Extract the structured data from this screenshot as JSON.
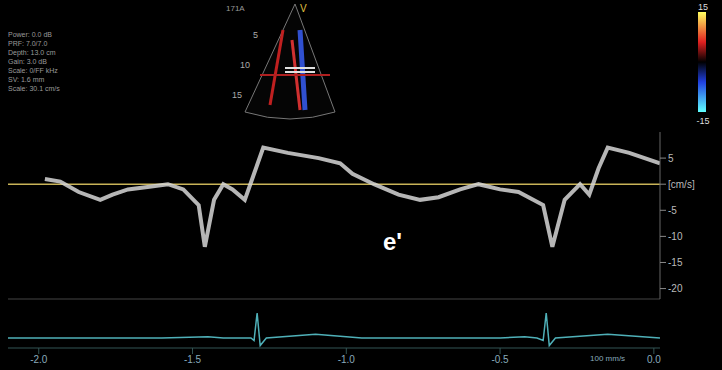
{
  "chart_data": [
    {
      "type": "line",
      "title": "171A",
      "info_text": [
        "Power: 0.0 dB",
        "PRF: 7.0/7.0",
        "Depth: 13.0 cm",
        "Gain: 3.0 dB",
        "Scale: 0/FF kHz",
        "SV: 1.6 mm",
        "Scale: 30.1 cm/s"
      ],
      "x": [
        -1.98,
        -1.93,
        -1.87,
        -1.8,
        -1.76,
        -1.71,
        -1.64,
        -1.58,
        -1.53,
        -1.48,
        -1.46,
        -1.43,
        -1.4,
        -1.37,
        -1.33,
        -1.3,
        -1.27,
        -1.19,
        -1.09,
        -1.02,
        -0.98,
        -0.91,
        -0.83,
        -0.76,
        -0.7,
        -0.63,
        -0.57,
        -0.5,
        -0.44,
        -0.36,
        -0.33,
        -0.29,
        -0.24,
        -0.21,
        -0.18,
        -0.15,
        -0.08,
        0.02
      ],
      "values": [
        1,
        0.5,
        -1.5,
        -3,
        -2,
        -1,
        -0.5,
        0,
        -1,
        -4,
        -12,
        -3,
        0,
        -1,
        -3,
        2,
        7,
        6,
        5,
        4,
        2,
        0,
        -2,
        -3,
        -2.5,
        -1,
        0,
        -1,
        -1.5,
        -4,
        -12,
        -3,
        0,
        -2,
        3,
        7,
        6,
        4
      ],
      "color": "#d6d6d6",
      "xlim": [
        -2.1,
        0.02
      ],
      "ylim": [
        -22,
        10
      ],
      "yticks": [
        5,
        {
          "value": 0,
          "label": "[cm/s]"
        },
        -5,
        -10,
        -15,
        -20
      ],
      "annotations": [
        {
          "text": "e'",
          "x": -0.85,
          "y": -11
        }
      ],
      "sector": {
        "depth_ticks": [
          5,
          10,
          15
        ],
        "label": "V"
      },
      "colorbar": {
        "ticks": [
          15,
          -15
        ]
      }
    },
    {
      "type": "line",
      "subtitle": "100 mm/s",
      "x": [
        -2.1,
        -1.6,
        -1.45,
        -1.4,
        -1.31,
        -1.3,
        -1.29,
        -1.28,
        -1.26,
        -1.1,
        -0.95,
        -0.5,
        -0.42,
        -0.38,
        -0.36,
        -0.35,
        -0.34,
        -0.32,
        -0.15,
        0.02
      ],
      "values": [
        0,
        0,
        0.5,
        0,
        0,
        -1,
        10,
        -3,
        0,
        1.5,
        0,
        0,
        0.5,
        0,
        -1,
        10,
        -3,
        0,
        1.5,
        0
      ],
      "color": "#4fb0b8",
      "xlim": [
        -2.1,
        0.02
      ],
      "ylim": [
        -4,
        12
      ],
      "xticks": [
        {
          "value": -2,
          "label": "-2.0"
        },
        {
          "value": -1.5,
          "label": "-1.5"
        },
        {
          "value": -1,
          "label": "-1.0"
        },
        {
          "value": -0.5,
          "label": "-0.5"
        },
        {
          "value": 0,
          "label": "0.0"
        }
      ],
      "tick_labels": "x"
    }
  ]
}
